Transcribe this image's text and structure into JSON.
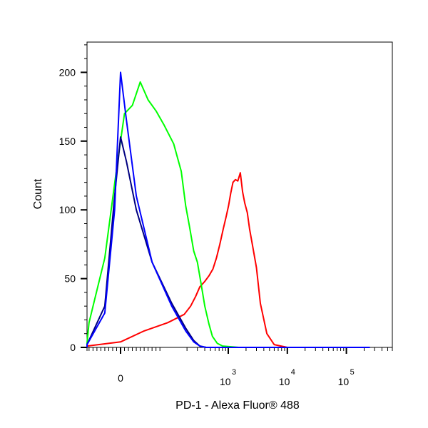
{
  "chart_data": {
    "type": "line",
    "title": "",
    "xlabel": "PD-1 - Alexa Fluor® 488",
    "ylabel": "Count",
    "x_scale": "biexponential",
    "x_tick_labels": [
      {
        "value": 0,
        "base": "0",
        "exp": ""
      },
      {
        "value": 1000,
        "base": "10",
        "exp": "3"
      },
      {
        "value": 10000,
        "base": "10",
        "exp": "4"
      },
      {
        "value": 100000,
        "base": "10",
        "exp": "5"
      }
    ],
    "y_ticks": [
      0,
      50,
      100,
      150,
      200
    ],
    "ylim": [
      0,
      222
    ],
    "grid": false,
    "series": [
      {
        "color": "#0000ff",
        "x": [
          -200,
          -100,
          -40,
          -15,
          0,
          15,
          40,
          80,
          130,
          190,
          260,
          330,
          420,
          520,
          700,
          1000,
          3000,
          30000,
          250000
        ],
        "values": [
          0,
          2,
          25,
          100,
          200,
          165,
          110,
          62,
          30,
          12,
          4,
          1,
          0,
          0,
          0,
          0,
          0,
          0,
          0
        ]
      },
      {
        "color": "#000080",
        "x": [
          -200,
          -100,
          -40,
          -15,
          0,
          15,
          40,
          80,
          130,
          190,
          260,
          330,
          420,
          520,
          700,
          1000,
          3000,
          30000,
          250000
        ],
        "values": [
          0,
          2,
          30,
          110,
          153,
          135,
          100,
          62,
          32,
          14,
          5,
          1,
          0,
          0,
          0,
          0,
          0,
          0,
          0
        ]
      },
      {
        "color": "#00ff00",
        "x": [
          -250,
          -150,
          -80,
          -40,
          -10,
          10,
          30,
          50,
          70,
          90,
          110,
          135,
          160,
          190,
          220,
          260,
          300,
          350,
          400,
          470,
          540,
          650,
          800,
          1500,
          30000,
          250000
        ],
        "values": [
          0,
          3,
          18,
          65,
          130,
          170,
          176,
          193,
          180,
          172,
          162,
          148,
          128,
          103,
          88,
          70,
          62,
          45,
          30,
          17,
          8,
          3,
          1,
          0,
          0,
          0
        ]
      },
      {
        "color": "#ff0000",
        "x": [
          -250,
          -100,
          0,
          60,
          120,
          180,
          230,
          280,
          330,
          400,
          470,
          550,
          630,
          720,
          820,
          920,
          1010,
          1100,
          1200,
          1320,
          1450,
          1600,
          1750,
          1900,
          2100,
          2300,
          2600,
          3000,
          3500,
          4500,
          6000,
          10000,
          30000,
          100000,
          250000
        ],
        "values": [
          0,
          1,
          4,
          12,
          18,
          24,
          30,
          37,
          44,
          48,
          52,
          57,
          65,
          75,
          86,
          95,
          103,
          112,
          120,
          122,
          121,
          127,
          113,
          105,
          98,
          86,
          73,
          58,
          32,
          10,
          2,
          0,
          0,
          0,
          0
        ]
      }
    ]
  }
}
